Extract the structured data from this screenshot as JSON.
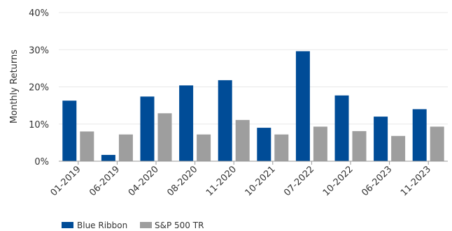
{
  "chart_data": {
    "type": "bar",
    "title": "",
    "xlabel": "",
    "ylabel": "Monthly Returns",
    "categories": [
      "01-2019",
      "06-2019",
      "04-2020",
      "08-2020",
      "11-2020",
      "10-2021",
      "07-2022",
      "10-2022",
      "06-2023",
      "11-2023"
    ],
    "series": [
      {
        "name": "Blue Ribbon",
        "color": "#004C97",
        "values": [
          16.3,
          1.7,
          17.4,
          20.4,
          21.8,
          9.0,
          29.6,
          17.7,
          12.0,
          14.0
        ]
      },
      {
        "name": "S&P 500 TR",
        "color": "#9E9E9E",
        "values": [
          8.0,
          7.2,
          12.9,
          7.2,
          11.1,
          7.2,
          9.3,
          8.1,
          6.8,
          9.3
        ]
      }
    ],
    "ylim": [
      0,
      40
    ],
    "yticks": [
      0,
      10,
      20,
      30,
      40
    ],
    "ytick_labels": [
      "0%",
      "10%",
      "20%",
      "30%",
      "40%"
    ],
    "grid": true,
    "legend_position": "bottom-left"
  }
}
